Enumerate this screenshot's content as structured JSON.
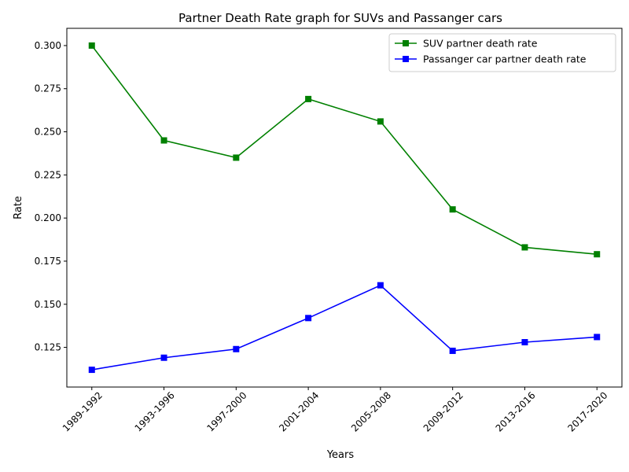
{
  "chart_data": {
    "type": "line",
    "title": "Partner Death Rate graph for SUVs and Passanger cars",
    "xlabel": "Years",
    "ylabel": "Rate",
    "categories": [
      "1989-1992",
      "1993-1996",
      "1997-2000",
      "2001-2004",
      "2005-2008",
      "2009-2012",
      "2013-2016",
      "2017-2020"
    ],
    "ylim": [
      0.102,
      0.31
    ],
    "yticks": [
      0.125,
      0.15,
      0.175,
      0.2,
      0.225,
      0.25,
      0.275,
      0.3
    ],
    "ytick_labels": [
      "0.125",
      "0.150",
      "0.175",
      "0.200",
      "0.225",
      "0.250",
      "0.275",
      "0.300"
    ],
    "grid": false,
    "legend_position": "top-right",
    "series": [
      {
        "name": "SUV partner death rate",
        "color": "#008000",
        "marker": "square",
        "values": [
          0.3,
          0.245,
          0.235,
          0.269,
          0.256,
          0.205,
          0.183,
          0.179
        ]
      },
      {
        "name": "Passanger car partner death rate",
        "color": "#0000ff",
        "marker": "square",
        "values": [
          0.112,
          0.119,
          0.124,
          0.142,
          0.161,
          0.123,
          0.128,
          0.131
        ]
      }
    ]
  }
}
